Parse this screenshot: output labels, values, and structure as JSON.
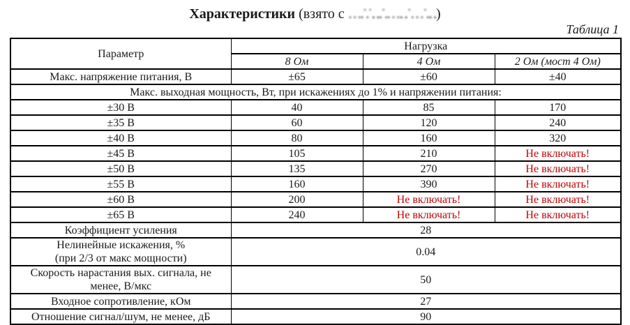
{
  "title": {
    "bold": "Характеристики",
    "normal_open": " (взято с ",
    "obscured": "….˙.˙‥.˙.…‥˙…˙.‥",
    "normal_close": ")"
  },
  "table_label": "Таблица 1",
  "header": {
    "param": "Параметр",
    "load": "Нагрузка",
    "cols": [
      "8 Ом",
      "4 Ом",
      "2 Ом (мост 4 Ом)"
    ]
  },
  "rows": {
    "max_voltage": {
      "label": "Макс. напряжение питания, В",
      "values": [
        "±65",
        "±60",
        "±40"
      ]
    },
    "section": "Макс. выходная мощность, Вт, при искажениях до 1% и напряжении питания:",
    "power": [
      {
        "label": "±30 В",
        "values": [
          "40",
          "85",
          "170"
        ]
      },
      {
        "label": "±35 В",
        "values": [
          "60",
          "120",
          "240"
        ]
      },
      {
        "label": "±40 В",
        "values": [
          "80",
          "160",
          "320"
        ]
      },
      {
        "label": "±45 В",
        "values": [
          "105",
          "210",
          "Не включать!"
        ]
      },
      {
        "label": "±50 В",
        "values": [
          "135",
          "270",
          "Не включать!"
        ]
      },
      {
        "label": "±55 В",
        "values": [
          "160",
          "390",
          "Не включать!"
        ]
      },
      {
        "label": "±60 В",
        "values": [
          "200",
          "Не включать!",
          "Не включать!"
        ]
      },
      {
        "label": "±65 В",
        "values": [
          "240",
          "Не включать!",
          "Не включать!"
        ]
      }
    ],
    "specs": [
      {
        "label": "Коэффициент усиления",
        "value": "28"
      },
      {
        "label": "Нелинейные искажения, %\n(при 2/3 от макс мощности)",
        "value": "0.04"
      },
      {
        "label": "Скорость нарастания вых. сигнала, не менее, В/мкс",
        "value": "50"
      },
      {
        "label": "Входное сопротивление, кОм",
        "value": "27"
      },
      {
        "label": "Отношение сигнал/шум, не менее, дБ",
        "value": "90"
      }
    ]
  },
  "colors": {
    "warning_red": "#c00000",
    "text_black": "#1a1a1a"
  }
}
